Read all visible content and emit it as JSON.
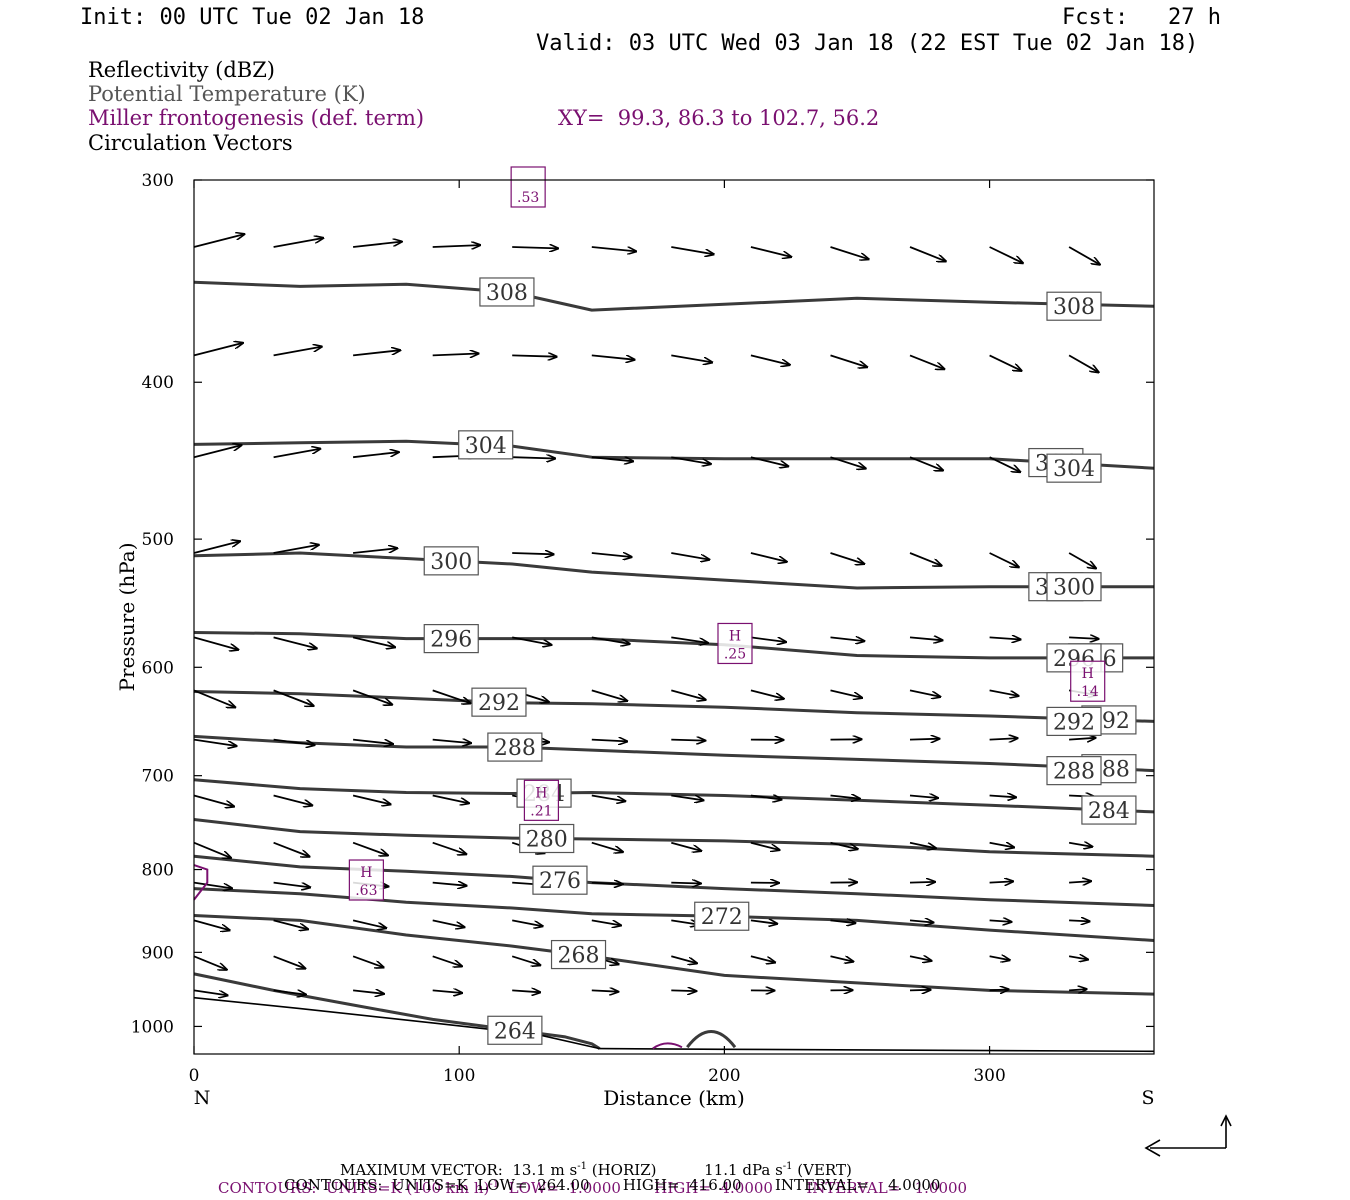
{
  "header": {
    "init": "Init: 00 UTC Tue 02 Jan 18",
    "fcst": "Fcst:   27 h",
    "valid": "Valid: 03 UTC Wed 03 Jan 18 (22 EST Tue 02 Jan 18)"
  },
  "legend": {
    "reflectivity": "Reflectivity (dBZ)",
    "potential_temperature": "Potential Temperature (K)",
    "frontogenesis": "Miller frontogenesis (def. term)",
    "xy": "XY=  99.3, 86.3 to 102.7, 56.2",
    "circulation": "Circulation Vectors"
  },
  "colors": {
    "theta": "#3a3a3a",
    "fronto": "#7a1070",
    "vector": "#000000"
  },
  "footer": {
    "max_vector": "MAXIMUM VECTOR:  13.1 m s",
    "max_vector_sup": "-1",
    "max_vector_horiz": " (HORIZ)",
    "max_vector_vert": "11.1 dPa s",
    "max_vector_vert_sup": "-1",
    "max_vector_vert_tail": " (VERT)",
    "contours1_a": "CONTOURS:  UNITS=K (100 km h)",
    "contours1_sup": "-1",
    "contours1_b": "  LOW=  1.0000       HIGH=  4.0000       INTERVAL=   1.0000",
    "contours2": "CONTOURS:  UNITS=K  LOW=  264.00       HIGH=  416.00       INTERVAL=    4.0000"
  },
  "chart_data": {
    "type": "line",
    "title": "",
    "xlabel": "Distance (km)",
    "ylabel": "Pressure (hPa)",
    "xlim": [
      0,
      362
    ],
    "ylim": [
      300,
      1040
    ],
    "y_scale": "log",
    "x_ticks": [
      "0",
      "100",
      "200",
      "300"
    ],
    "y_ticks": [
      "300",
      "400",
      "500",
      "600",
      "700",
      "800",
      "900",
      "1000"
    ],
    "x_endpoints": [
      "N",
      "S"
    ],
    "series": [
      {
        "contour": "308",
        "label": "308",
        "x": [
          0,
          40,
          80,
          120,
          150,
          200,
          250,
          300,
          362
        ],
        "y": [
          347,
          349,
          348,
          352,
          361,
          358,
          355,
          357,
          359
        ]
      },
      {
        "contour": "304",
        "label": "304",
        "x": [
          0,
          40,
          80,
          120,
          150,
          200,
          250,
          300,
          362
        ],
        "y": [
          437,
          436,
          435,
          438,
          445,
          446,
          446,
          446,
          452
        ]
      },
      {
        "contour": "300",
        "label": "300",
        "x": [
          0,
          40,
          80,
          120,
          150,
          200,
          250,
          300,
          362
        ],
        "y": [
          512,
          510,
          514,
          518,
          524,
          530,
          536,
          535,
          535
        ]
      },
      {
        "contour": "296",
        "label": "296",
        "x": [
          0,
          40,
          80,
          120,
          150,
          200,
          250,
          300,
          362
        ],
        "y": [
          571,
          572,
          576,
          576,
          576,
          581,
          590,
          592,
          592
        ]
      },
      {
        "contour": "292",
        "label": "292",
        "x": [
          0,
          40,
          80,
          120,
          150,
          200,
          250,
          300,
          362
        ],
        "y": [
          621,
          623,
          627,
          631,
          632,
          635,
          640,
          643,
          648
        ]
      },
      {
        "contour": "288",
        "label": "288",
        "x": [
          0,
          40,
          80,
          120,
          150,
          200,
          250,
          300,
          362
        ],
        "y": [
          662,
          668,
          672,
          672,
          675,
          680,
          684,
          688,
          695
        ]
      },
      {
        "contour": "284",
        "label": "284",
        "x": [
          0,
          40,
          80,
          120,
          150,
          200,
          250,
          300,
          362
        ],
        "y": [
          704,
          713,
          717,
          718,
          717,
          720,
          725,
          730,
          737
        ]
      },
      {
        "contour": "280",
        "label": "280",
        "x": [
          0,
          40,
          80,
          120,
          150,
          200,
          250,
          300,
          362
        ],
        "y": [
          745,
          758,
          762,
          765,
          766,
          768,
          772,
          780,
          785
        ]
      },
      {
        "contour": "276",
        "label": "276",
        "x": [
          0,
          40,
          80,
          120,
          150,
          200,
          250,
          300,
          362
        ],
        "y": [
          785,
          797,
          802,
          808,
          815,
          822,
          828,
          835,
          842
        ]
      },
      {
        "contour": "272",
        "label": "272",
        "x": [
          0,
          40,
          80,
          120,
          150,
          200,
          250,
          300,
          362
        ],
        "y": [
          822,
          828,
          838,
          845,
          852,
          855,
          860,
          872,
          885
        ]
      },
      {
        "contour": "268",
        "label": "268",
        "x": [
          0,
          40,
          80,
          120,
          150,
          200,
          250,
          300,
          362
        ],
        "y": [
          854,
          860,
          878,
          892,
          905,
          930,
          940,
          950,
          955
        ]
      },
      {
        "contour": "264",
        "label": "264",
        "x": [
          0,
          30,
          60,
          90,
          120,
          140,
          150,
          153
        ],
        "y": [
          928,
          950,
          970,
          990,
          1005,
          1015,
          1025,
          1032
        ]
      }
    ],
    "fronto_maxima": [
      {
        "label": "H",
        "value": ".63",
        "x": 65,
        "p": 812
      },
      {
        "label": "H",
        "value": ".21",
        "x": 131,
        "p": 725
      },
      {
        "label": "H",
        "value": ".25",
        "x": 204,
        "p": 580
      },
      {
        "label": "H",
        "value": ".14",
        "x": 337,
        "p": 612
      },
      {
        "label": "",
        "value": ".53",
        "x": 126,
        "p": 303
      }
    ],
    "vectors": {
      "units": "m s-1 (HORIZ) / dPa s-1 (VERT)",
      "reference": "13.1 m s-1 (HORIZ), 11.1 dPa s-1 (VERT)"
    }
  }
}
